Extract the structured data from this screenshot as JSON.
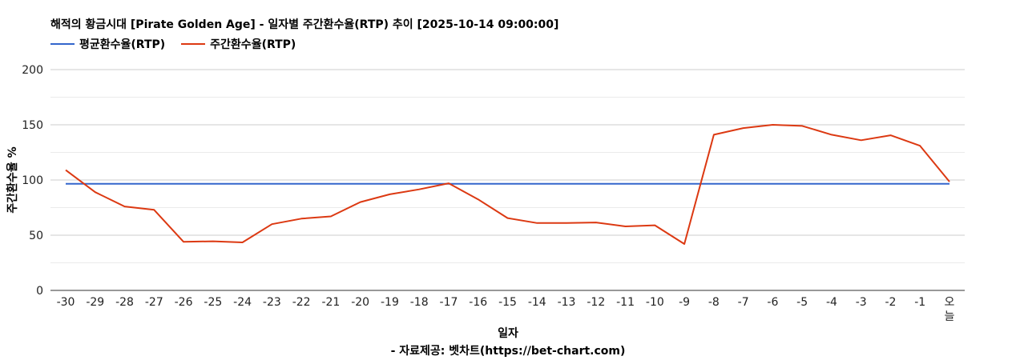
{
  "chart_data": {
    "type": "line",
    "title": "해적의 황금시대 [Pirate Golden Age] - 일자별 주간환수율(RTP) 추이 [2025-10-14 09:00:00]",
    "xlabel": "일자",
    "ylabel": "주간환수율 %",
    "source": "- 자료제공: 벳차트(https://bet-chart.com)",
    "ylim": [
      0,
      200
    ],
    "yticks": [
      "0",
      "50",
      "100",
      "150",
      "200"
    ],
    "grid": true,
    "legend_position": "top-left",
    "categories": [
      "-30",
      "-29",
      "-28",
      "-27",
      "-26",
      "-25",
      "-24",
      "-23",
      "-22",
      "-21",
      "-20",
      "-19",
      "-18",
      "-17",
      "-16",
      "-15",
      "-14",
      "-13",
      "-12",
      "-11",
      "-10",
      "-9",
      "-8",
      "-7",
      "-6",
      "-5",
      "-4",
      "-3",
      "-2",
      "-1",
      "오늘"
    ],
    "series": [
      {
        "name": "평균환수율(RTP)",
        "color": "#3366cc",
        "values": [
          96.5,
          96.5,
          96.5,
          96.5,
          96.5,
          96.5,
          96.5,
          96.5,
          96.5,
          96.5,
          96.5,
          96.5,
          96.5,
          96.5,
          96.5,
          96.5,
          96.5,
          96.5,
          96.5,
          96.5,
          96.5,
          96.5,
          96.5,
          96.5,
          96.5,
          96.5,
          96.5,
          96.5,
          96.5,
          96.5,
          96.5
        ]
      },
      {
        "name": "주간환수율(RTP)",
        "color": "#dc3912",
        "values": [
          109,
          89,
          76,
          73,
          44,
          44.5,
          43.5,
          60,
          65,
          67,
          80,
          87,
          91.5,
          97,
          82.5,
          65.5,
          61,
          61,
          61.5,
          58,
          59,
          42,
          141,
          147,
          150,
          149,
          141,
          136,
          140.5,
          131,
          98.5
        ]
      }
    ]
  }
}
